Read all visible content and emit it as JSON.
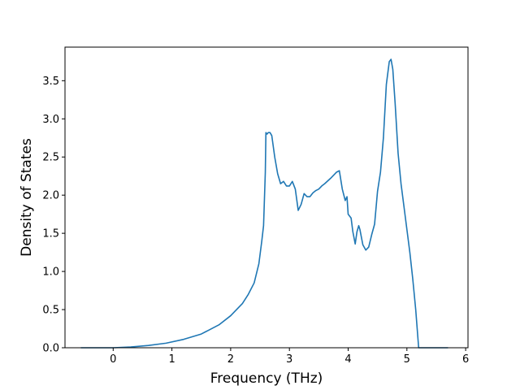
{
  "chart_data": {
    "type": "line",
    "title": "",
    "xlabel": "Frequency (THz)",
    "ylabel": "Density of States",
    "xlim": [
      -0.82,
      6.04
    ],
    "ylim": [
      0,
      3.94
    ],
    "xticks": [
      0,
      1,
      2,
      3,
      4,
      5,
      6
    ],
    "yticks": [
      0.0,
      0.5,
      1.0,
      1.5,
      2.0,
      2.5,
      3.0,
      3.5
    ],
    "xtick_labels": [
      "0",
      "1",
      "2",
      "3",
      "4",
      "5",
      "6"
    ],
    "ytick_labels": [
      "0.0",
      "0.5",
      "1.0",
      "1.5",
      "2.0",
      "2.5",
      "3.0",
      "3.5"
    ],
    "grid": false,
    "legend": "none",
    "series": [
      {
        "color": "#1f77b4",
        "x": [
          -0.55,
          0.0,
          0.3,
          0.6,
          0.9,
          1.2,
          1.5,
          1.8,
          2.0,
          2.1,
          2.2,
          2.3,
          2.4,
          2.48,
          2.53,
          2.56,
          2.59,
          2.6,
          2.62,
          2.64,
          2.67,
          2.7,
          2.75,
          2.8,
          2.85,
          2.9,
          2.95,
          3.0,
          3.05,
          3.1,
          3.15,
          3.2,
          3.25,
          3.3,
          3.35,
          3.4,
          3.45,
          3.5,
          3.55,
          3.6,
          3.7,
          3.8,
          3.85,
          3.9,
          3.95,
          3.98,
          4.0,
          4.05,
          4.08,
          4.12,
          4.15,
          4.18,
          4.2,
          4.25,
          4.3,
          4.35,
          4.4,
          4.45,
          4.5,
          4.55,
          4.6,
          4.65,
          4.7,
          4.73,
          4.76,
          4.8,
          4.85,
          4.9,
          4.95,
          5.0,
          5.05,
          5.1,
          5.15,
          5.2,
          5.4,
          5.7
        ],
        "y": [
          0.0,
          0.0,
          0.01,
          0.03,
          0.06,
          0.11,
          0.18,
          0.3,
          0.42,
          0.5,
          0.58,
          0.7,
          0.85,
          1.1,
          1.4,
          1.6,
          2.3,
          2.82,
          2.8,
          2.82,
          2.82,
          2.78,
          2.5,
          2.28,
          2.15,
          2.18,
          2.12,
          2.12,
          2.18,
          2.08,
          1.8,
          1.88,
          2.02,
          1.98,
          1.98,
          2.03,
          2.06,
          2.08,
          2.12,
          2.15,
          2.22,
          2.3,
          2.32,
          2.08,
          1.93,
          1.98,
          1.75,
          1.7,
          1.52,
          1.36,
          1.52,
          1.6,
          1.55,
          1.35,
          1.28,
          1.32,
          1.48,
          1.62,
          2.05,
          2.3,
          2.75,
          3.45,
          3.75,
          3.78,
          3.65,
          3.2,
          2.55,
          2.15,
          1.85,
          1.55,
          1.25,
          0.9,
          0.5,
          0.0,
          0.0,
          0.0
        ]
      }
    ]
  }
}
